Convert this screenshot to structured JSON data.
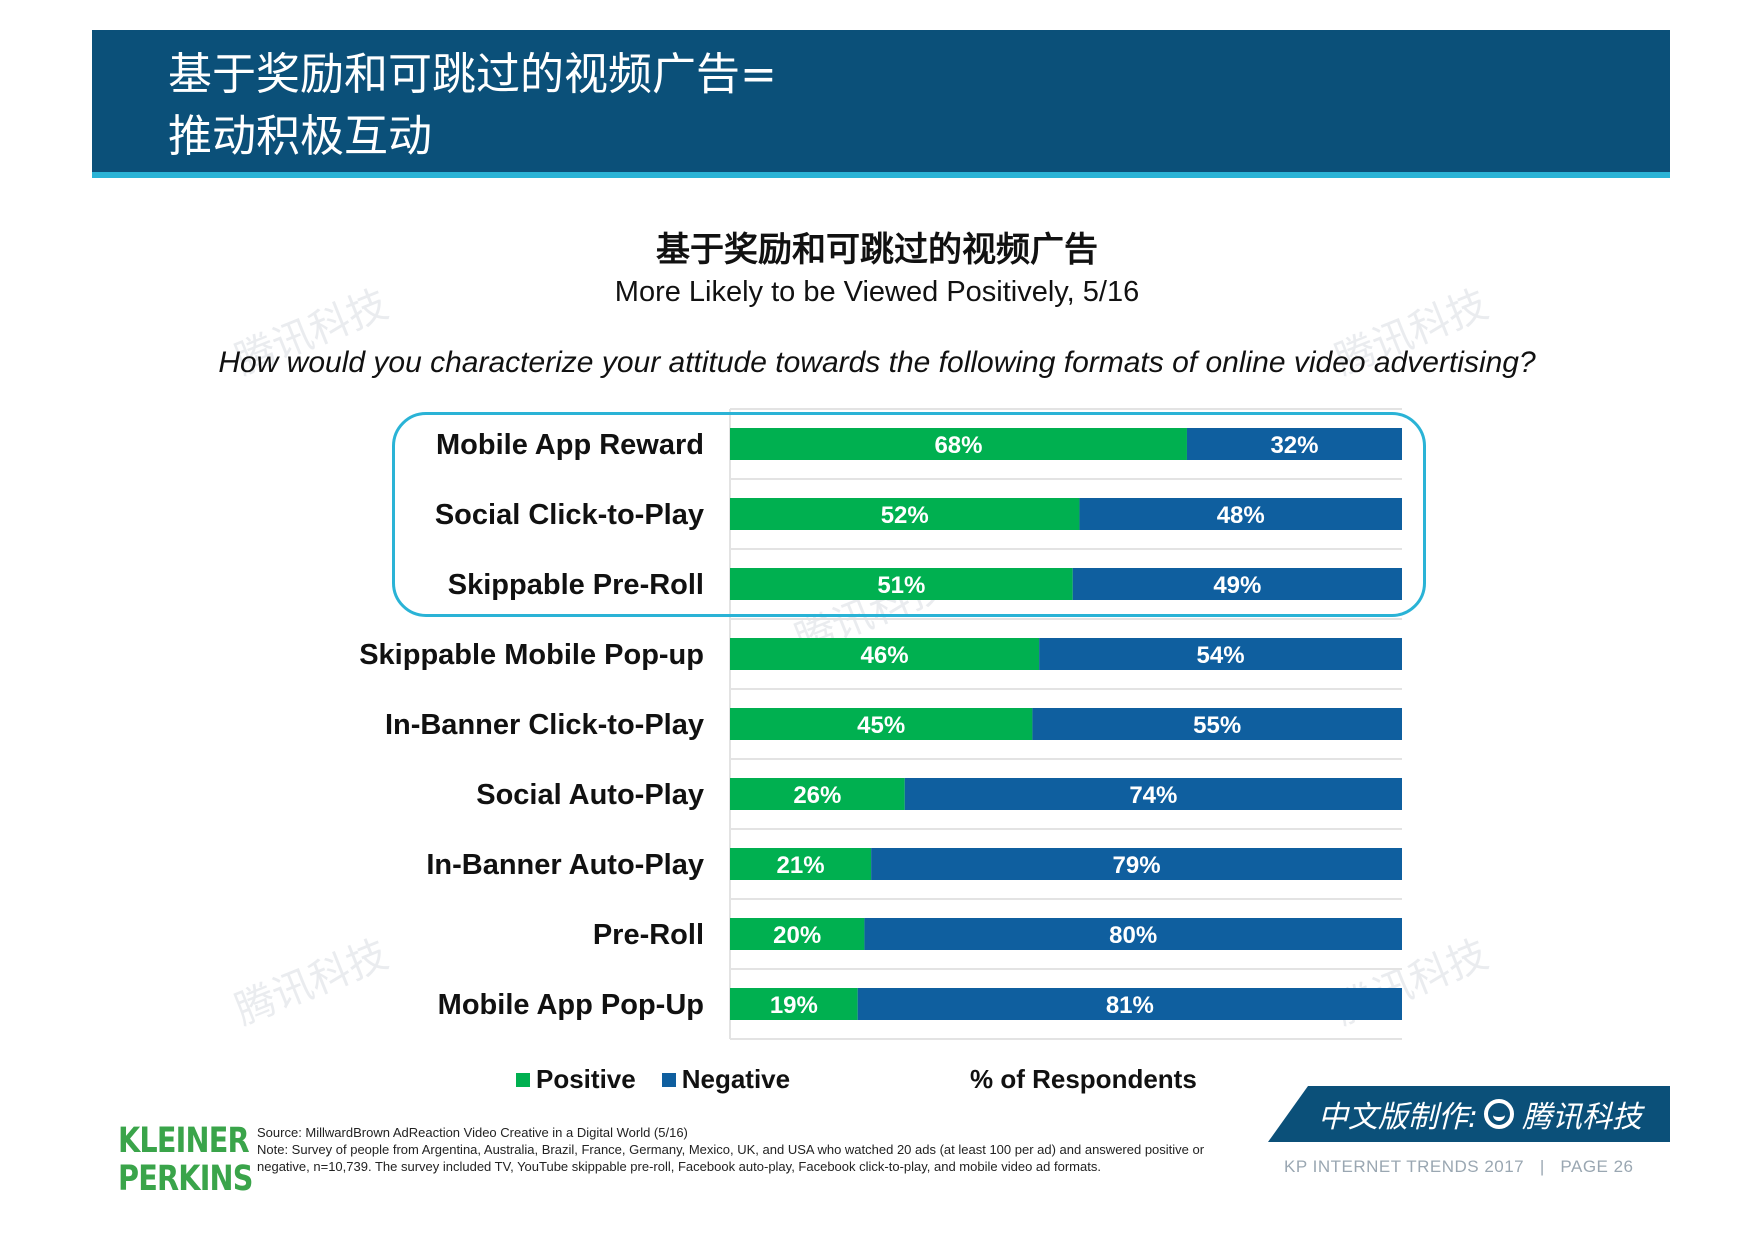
{
  "header": {
    "title_line1": "基于奖励和可跳过的视频广告=",
    "title_line2": "推动积极互动"
  },
  "chart_data": {
    "type": "bar",
    "orientation": "horizontal",
    "stacked": true,
    "title": "基于奖励和可跳过的视频广告",
    "subtitle": "More Likely to be Viewed Positively, 5/16",
    "question": "How would you characterize your attitude towards the following formats of online video advertising?",
    "categories": [
      "Mobile App Reward",
      "Social Click-to-Play",
      "Skippable Pre-Roll",
      "Skippable Mobile Pop-up",
      "In-Banner Click-to-Play",
      "Social Auto-Play",
      "In-Banner Auto-Play",
      "Pre-Roll",
      "Mobile App Pop-Up"
    ],
    "series": [
      {
        "name": "Positive",
        "color": "#00b050",
        "values": [
          68,
          52,
          51,
          46,
          45,
          26,
          21,
          20,
          19
        ]
      },
      {
        "name": "Negative",
        "color": "#0f5f9f",
        "values": [
          32,
          48,
          49,
          54,
          55,
          74,
          79,
          80,
          81
        ]
      }
    ],
    "xlabel": "% of Respondents",
    "xlim": [
      0,
      100
    ],
    "highlighted_categories": [
      "Mobile App Reward",
      "Social Click-to-Play",
      "Skippable Pre-Roll"
    ],
    "legend_position": "bottom-left"
  },
  "legend": {
    "positive": "Positive",
    "negative": "Negative"
  },
  "axis_note": "% of Respondents",
  "logo": {
    "line1": "KLEINER",
    "line2": "PERKINS"
  },
  "source": {
    "line1": "Source: MillwardBrown AdReaction Video Creative in a Digital World (5/16)",
    "note": "Note: Survey of people from Argentina, Australia, Brazil, France, Germany, Mexico, UK, and USA who watched 20 ads (at least 100 per ad) and answered positive or negative, n=10,739. The survey included TV, YouTube skippable pre-roll, Facebook auto-play, Facebook click-to-play, and mobile video ad formats."
  },
  "credit": {
    "label": "中文版制作:",
    "brand": "腾讯科技"
  },
  "footer": {
    "report": "KP INTERNET TRENDS 2017",
    "separator": "|",
    "page": "PAGE 26"
  },
  "watermark": "腾讯科技"
}
